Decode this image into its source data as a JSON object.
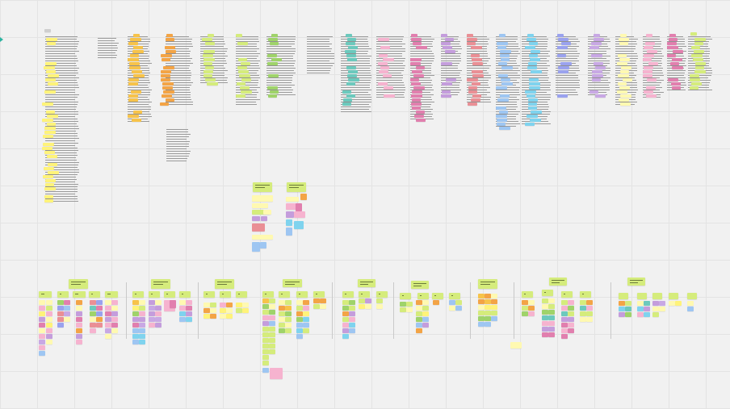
{
  "canvas": {
    "background": "#f1f1f1",
    "grid_color": "#e3e3e3",
    "marker_color": "#2bb3a0"
  },
  "note_palette": {
    "yellow": "#fff37a",
    "pale_yellow": "#fff9b1",
    "orange": "#f3a446",
    "amber": "#f7c34a",
    "lime": "#d5ec7c",
    "green": "#9fd36a",
    "teal": "#6cc9bd",
    "pink": "#f6b3cf",
    "magenta": "#e17fae",
    "purple": "#c49ddc",
    "red": "#ea8f95",
    "blue": "#9ec6f2",
    "cyan": "#7fd3ee",
    "violet": "#9aa2ee",
    "lavender": "#c8a8e4",
    "gray": "#cfcfcf"
  },
  "top_region": {
    "label": "research-columns"
  },
  "middle_region": {
    "label": "summary-clusters"
  },
  "bottom_region": {
    "label": "affinity-groups"
  }
}
